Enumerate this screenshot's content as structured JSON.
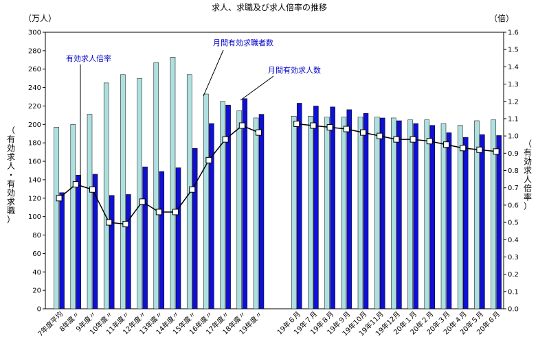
{
  "chart_data": {
    "type": "bar",
    "title": "求人、求職及び求人倍率の推移",
    "left_axis": {
      "unit": "（万人）",
      "label": "（有効求人・有効求職）",
      "ylim": [
        0,
        300
      ],
      "step": 20
    },
    "right_axis": {
      "unit": "（倍）",
      "label": "（有効求人倍率）",
      "ylim": [
        0.0,
        1.6
      ],
      "step": 0.1
    },
    "categories": [
      "7年度平均",
      "8年度〃",
      "9年度〃",
      "10年度〃",
      "11年度〃",
      "12年度〃",
      "13年度〃",
      "14年度〃",
      "15年度〃",
      "16年度〃",
      "17年度〃",
      "18年度〃",
      "19年度〃",
      "19年６月",
      "19年７月",
      "19年８月",
      "19年９月",
      "19年10月",
      "19年11月",
      "19年12月",
      "20年１月",
      "20年２月",
      "20年３月",
      "20年４月",
      "20年５月",
      "20年６月"
    ],
    "gap_after_index": 12,
    "series": [
      {
        "name": "月間有効求職者数",
        "type": "bar",
        "color": "#aee0e0",
        "values": [
          197,
          200,
          211,
          245,
          254,
          250,
          267,
          273,
          254,
          233,
          225,
          215,
          207,
          209,
          209,
          208,
          208,
          208,
          208,
          207,
          205,
          205,
          201,
          199,
          204,
          205
        ]
      },
      {
        "name": "月間有効求人数",
        "type": "bar",
        "color": "#1010d0",
        "values": [
          126,
          145,
          146,
          123,
          124,
          154,
          149,
          153,
          174,
          201,
          221,
          228,
          211,
          223,
          220,
          219,
          216,
          212,
          207,
          204,
          201,
          199,
          191,
          186,
          189,
          188
        ]
      },
      {
        "name": "有効求人倍率",
        "type": "line",
        "axis": "right",
        "values": [
          0.64,
          0.72,
          0.69,
          0.5,
          0.49,
          0.62,
          0.56,
          0.56,
          0.69,
          0.86,
          0.98,
          1.06,
          1.02,
          1.07,
          1.06,
          1.05,
          1.04,
          1.02,
          1.0,
          0.98,
          0.98,
          0.97,
          0.95,
          0.93,
          0.92,
          0.91
        ]
      }
    ],
    "annotations": [
      "有効求人倍率",
      "月間有効求職者数",
      "月間有効求人数"
    ]
  }
}
